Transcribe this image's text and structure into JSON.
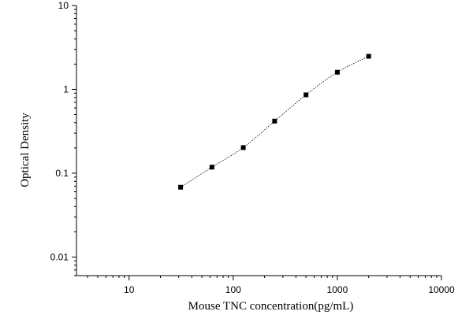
{
  "chart_data": {
    "type": "scatter",
    "xlabel": "Mouse TNC concentration(pg/mL)",
    "ylabel": "Optical Density",
    "xscale": "log",
    "yscale": "log",
    "xlim": [
      3.125,
      10000
    ],
    "ylim": [
      0.006,
      10
    ],
    "x_ticks": [
      10,
      100,
      1000,
      10000
    ],
    "x_tick_labels": [
      "10",
      "100",
      "1000",
      "10000"
    ],
    "y_ticks": [
      0.01,
      0.1,
      1,
      10
    ],
    "y_tick_labels": [
      "0.01",
      "0.1",
      "1",
      "10"
    ],
    "grid": false,
    "legend": "none",
    "series": [
      {
        "x": [
          31.25,
          62.5,
          125,
          250,
          500,
          1000,
          2000
        ],
        "y": [
          0.068,
          0.118,
          0.202,
          0.418,
          0.86,
          1.6,
          2.48
        ],
        "marker": "square",
        "fit_line": "dotted"
      }
    ],
    "colors": {
      "marker": "#000000",
      "axis": "#000000",
      "fit": "#000000"
    }
  }
}
